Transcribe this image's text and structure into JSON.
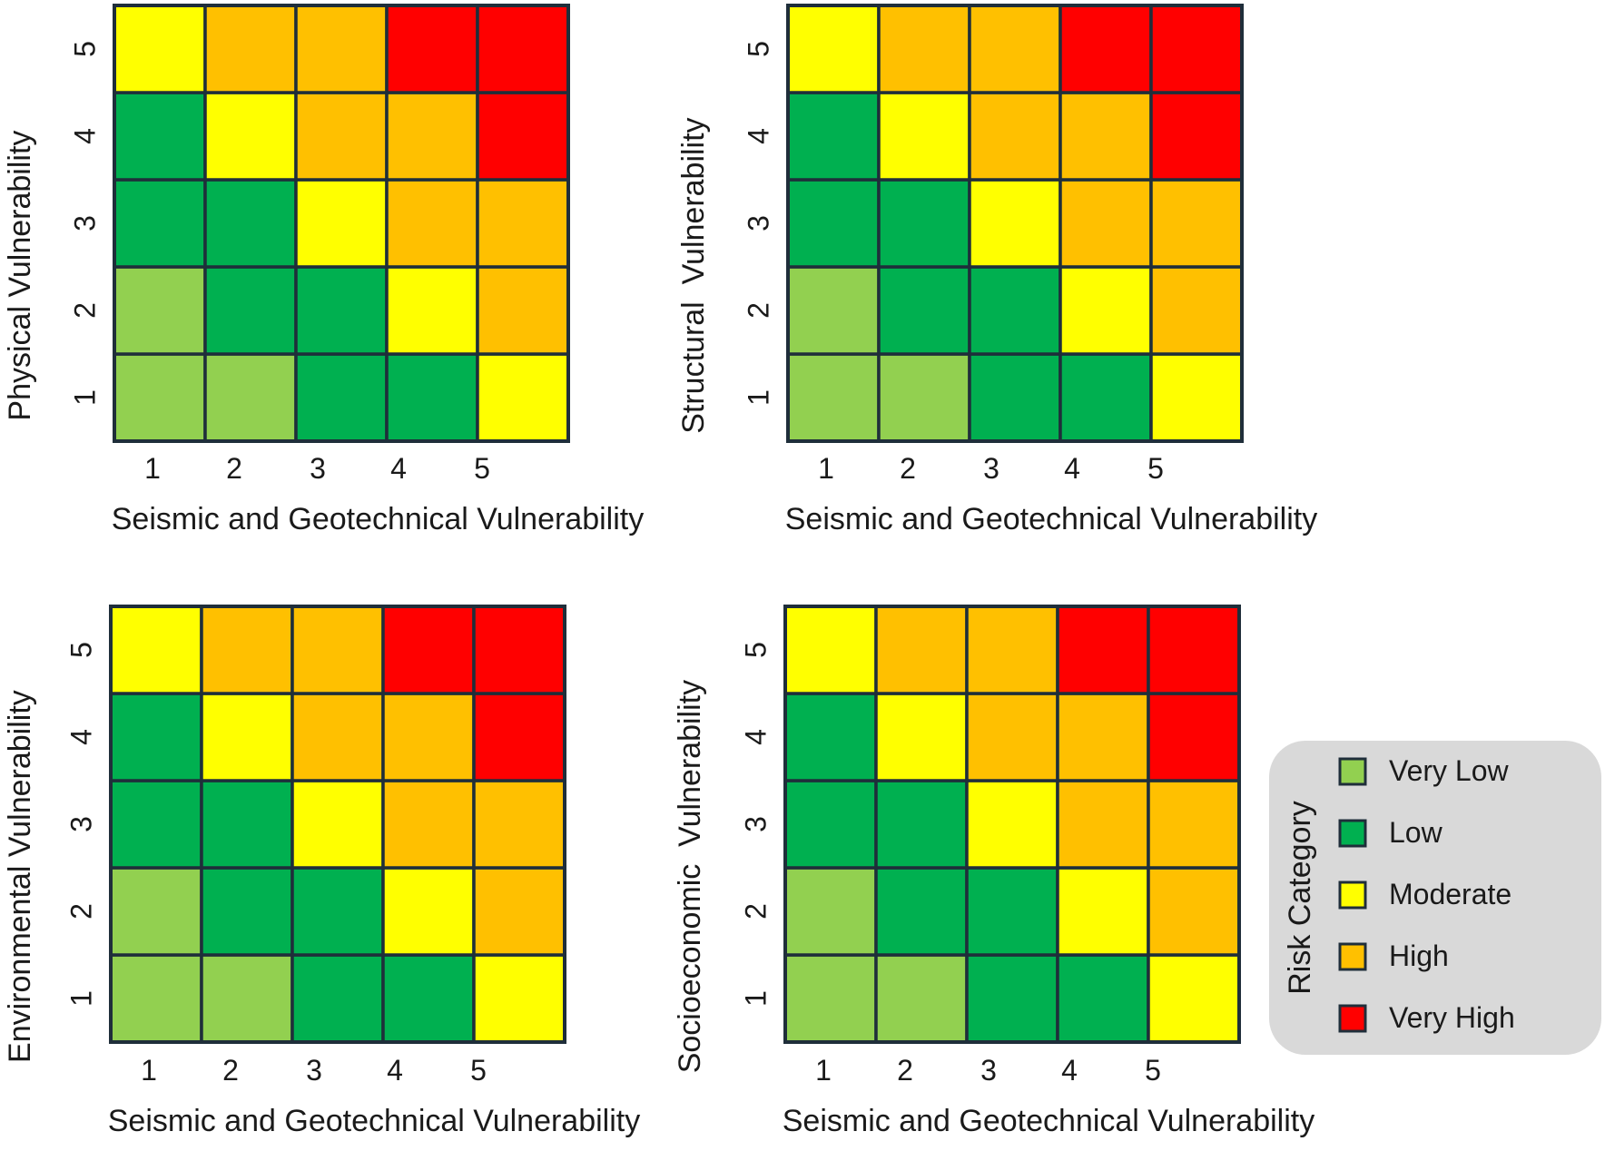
{
  "chart_data": [
    {
      "type": "heatmap",
      "xlabel": "Seismic and Geotechnical Vulnerability",
      "ylabel": "Physical Vulnerability",
      "x": [
        "1",
        "2",
        "3",
        "4",
        "5"
      ],
      "y": [
        "1",
        "2",
        "3",
        "4",
        "5"
      ],
      "values": [
        [
          "Very Low",
          "Very Low",
          "Low",
          "Low",
          "Moderate"
        ],
        [
          "Very Low",
          "Low",
          "Low",
          "Moderate",
          "High"
        ],
        [
          "Low",
          "Low",
          "Moderate",
          "High",
          "High"
        ],
        [
          "Low",
          "Moderate",
          "High",
          "High",
          "Very High"
        ],
        [
          "Moderate",
          "High",
          "High",
          "Very High",
          "Very High"
        ]
      ]
    },
    {
      "type": "heatmap",
      "xlabel": "Seismic and Geotechnical Vulnerability",
      "ylabel": "Structural  Vulnerability",
      "x": [
        "1",
        "2",
        "3",
        "4",
        "5"
      ],
      "y": [
        "1",
        "2",
        "3",
        "4",
        "5"
      ],
      "values": [
        [
          "Very Low",
          "Very Low",
          "Low",
          "Low",
          "Moderate"
        ],
        [
          "Very Low",
          "Low",
          "Low",
          "Moderate",
          "High"
        ],
        [
          "Low",
          "Low",
          "Moderate",
          "High",
          "High"
        ],
        [
          "Low",
          "Moderate",
          "High",
          "High",
          "Very High"
        ],
        [
          "Moderate",
          "High",
          "High",
          "Very High",
          "Very High"
        ]
      ]
    },
    {
      "type": "heatmap",
      "xlabel": "Seismic and Geotechnical Vulnerability",
      "ylabel": "Environmental Vulnerability",
      "x": [
        "1",
        "2",
        "3",
        "4",
        "5"
      ],
      "y": [
        "1",
        "2",
        "3",
        "4",
        "5"
      ],
      "values": [
        [
          "Very Low",
          "Very Low",
          "Low",
          "Low",
          "Moderate"
        ],
        [
          "Very Low",
          "Low",
          "Low",
          "Moderate",
          "High"
        ],
        [
          "Low",
          "Low",
          "Moderate",
          "High",
          "High"
        ],
        [
          "Low",
          "Moderate",
          "High",
          "High",
          "Very High"
        ],
        [
          "Moderate",
          "High",
          "High",
          "Very High",
          "Very High"
        ]
      ]
    },
    {
      "type": "heatmap",
      "xlabel": "Seismic and Geotechnical Vulnerability",
      "ylabel": "Socioeconomic  Vulnerability",
      "x": [
        "1",
        "2",
        "3",
        "4",
        "5"
      ],
      "y": [
        "1",
        "2",
        "3",
        "4",
        "5"
      ],
      "values": [
        [
          "Very Low",
          "Very Low",
          "Low",
          "Low",
          "Moderate"
        ],
        [
          "Very Low",
          "Low",
          "Low",
          "Moderate",
          "High"
        ],
        [
          "Low",
          "Low",
          "Moderate",
          "High",
          "High"
        ],
        [
          "Low",
          "Moderate",
          "High",
          "High",
          "Very High"
        ],
        [
          "Moderate",
          "High",
          "High",
          "Very High",
          "Very High"
        ]
      ]
    }
  ],
  "legend": {
    "title": "Risk Category",
    "items": [
      {
        "label": "Very Low",
        "color": "#92d050"
      },
      {
        "label": "Low",
        "color": "#00b050"
      },
      {
        "label": "Moderate",
        "color": "#ffff00"
      },
      {
        "label": "High",
        "color": "#ffc000"
      },
      {
        "label": "Very High",
        "color": "#ff0000"
      }
    ]
  },
  "colors": {
    "cell_border": "#1f2e3a",
    "legend_box": "#d9d9d9"
  }
}
